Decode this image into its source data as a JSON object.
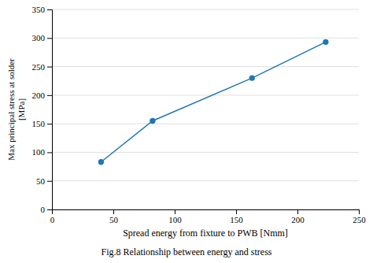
{
  "chart_data": {
    "type": "line",
    "x": [
      40,
      82,
      163,
      223
    ],
    "values": [
      83,
      155,
      230,
      293
    ],
    "xlim": [
      0,
      250
    ],
    "ylim": [
      0,
      350
    ],
    "xticks": [
      0,
      50,
      100,
      150,
      200,
      250
    ],
    "yticks": [
      0,
      50,
      100,
      150,
      200,
      250,
      300,
      350
    ],
    "xlabel": "Spread energy from fixture to PWB [Nmm]",
    "ylabel": "Max principal stress at solder\n[MPa]",
    "caption": "Fig.8 Relationship between energy and stress",
    "marker": "circle",
    "grid": "y"
  }
}
